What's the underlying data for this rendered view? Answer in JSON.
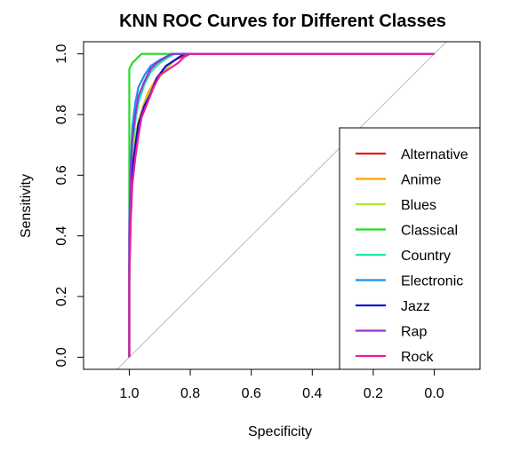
{
  "chart_data": {
    "type": "line",
    "title": "KNN ROC Curves for Different Classes",
    "xlabel": "Specificity",
    "ylabel": "Sensitivity",
    "xlim": [
      1.15,
      -0.15
    ],
    "ylim": [
      -0.04,
      1.04
    ],
    "x_reversed": true,
    "x_ticks": [
      {
        "value": 1.0,
        "label": "1.0"
      },
      {
        "value": 0.8,
        "label": "0.8"
      },
      {
        "value": 0.6,
        "label": "0.6"
      },
      {
        "value": 0.4,
        "label": "0.4"
      },
      {
        "value": 0.2,
        "label": "0.2"
      },
      {
        "value": 0.0,
        "label": "0.0"
      }
    ],
    "y_ticks": [
      {
        "value": 0.0,
        "label": "0.0"
      },
      {
        "value": 0.2,
        "label": "0.2"
      },
      {
        "value": 0.4,
        "label": "0.4"
      },
      {
        "value": 0.6,
        "label": "0.6"
      },
      {
        "value": 0.8,
        "label": "0.8"
      },
      {
        "value": 1.0,
        "label": "1.0"
      }
    ],
    "grid": false,
    "legend_position": "bottom-right",
    "diagonal_reference": {
      "color": "#bdbdbd",
      "points": [
        [
          1.04,
          -0.04
        ],
        [
          -0.04,
          1.04
        ]
      ]
    },
    "series": [
      {
        "name": "Alternative",
        "color": "#E8171A",
        "points": [
          [
            1,
            0
          ],
          [
            1,
            0.3
          ],
          [
            0.995,
            0.5
          ],
          [
            0.99,
            0.62
          ],
          [
            0.98,
            0.7
          ],
          [
            0.97,
            0.77
          ],
          [
            0.95,
            0.83
          ],
          [
            0.93,
            0.88
          ],
          [
            0.9,
            0.93
          ],
          [
            0.87,
            0.96
          ],
          [
            0.85,
            0.98
          ],
          [
            0.83,
            0.99
          ],
          [
            0.8,
            1
          ],
          [
            0,
            1
          ]
        ]
      },
      {
        "name": "Anime",
        "color": "#FFA500",
        "points": [
          [
            1,
            0
          ],
          [
            1,
            0.35
          ],
          [
            0.995,
            0.55
          ],
          [
            0.99,
            0.66
          ],
          [
            0.98,
            0.74
          ],
          [
            0.96,
            0.81
          ],
          [
            0.94,
            0.87
          ],
          [
            0.91,
            0.92
          ],
          [
            0.88,
            0.96
          ],
          [
            0.85,
            0.98
          ],
          [
            0.82,
            1
          ],
          [
            0,
            1
          ]
        ]
      },
      {
        "name": "Blues",
        "color": "#B2E830",
        "points": [
          [
            1,
            0
          ],
          [
            1,
            0.35
          ],
          [
            0.995,
            0.55
          ],
          [
            0.99,
            0.66
          ],
          [
            0.98,
            0.74
          ],
          [
            0.96,
            0.8
          ],
          [
            0.94,
            0.86
          ],
          [
            0.91,
            0.91
          ],
          [
            0.88,
            0.95
          ],
          [
            0.85,
            0.98
          ],
          [
            0.82,
            1
          ],
          [
            0,
            1
          ]
        ]
      },
      {
        "name": "Classical",
        "color": "#22DD22",
        "points": [
          [
            1,
            0
          ],
          [
            1,
            0.8
          ],
          [
            1,
            0.95
          ],
          [
            0.99,
            0.97
          ],
          [
            0.98,
            0.98
          ],
          [
            0.96,
            1
          ],
          [
            0,
            1
          ]
        ]
      },
      {
        "name": "Country",
        "color": "#1EE8B0",
        "points": [
          [
            1,
            0
          ],
          [
            1,
            0.4
          ],
          [
            0.995,
            0.6
          ],
          [
            0.99,
            0.7
          ],
          [
            0.98,
            0.78
          ],
          [
            0.97,
            0.84
          ],
          [
            0.95,
            0.9
          ],
          [
            0.93,
            0.94
          ],
          [
            0.9,
            0.97
          ],
          [
            0.87,
            0.99
          ],
          [
            0.85,
            1
          ],
          [
            0,
            1
          ]
        ]
      },
      {
        "name": "Electronic",
        "color": "#1E90E8",
        "points": [
          [
            1,
            0
          ],
          [
            1,
            0.45
          ],
          [
            0.995,
            0.65
          ],
          [
            0.99,
            0.76
          ],
          [
            0.98,
            0.84
          ],
          [
            0.97,
            0.89
          ],
          [
            0.95,
            0.93
          ],
          [
            0.93,
            0.96
          ],
          [
            0.9,
            0.98
          ],
          [
            0.88,
            0.99
          ],
          [
            0.86,
            1
          ],
          [
            0,
            1
          ]
        ]
      },
      {
        "name": "Jazz",
        "color": "#1010C8",
        "points": [
          [
            1,
            0
          ],
          [
            1,
            0.3
          ],
          [
            0.995,
            0.5
          ],
          [
            0.99,
            0.62
          ],
          [
            0.98,
            0.7
          ],
          [
            0.97,
            0.77
          ],
          [
            0.95,
            0.83
          ],
          [
            0.93,
            0.87
          ],
          [
            0.91,
            0.92
          ],
          [
            0.88,
            0.96
          ],
          [
            0.85,
            0.98
          ],
          [
            0.82,
            1
          ],
          [
            0,
            1
          ]
        ]
      },
      {
        "name": "Rap",
        "color": "#9932CC",
        "points": [
          [
            1,
            0
          ],
          [
            1,
            0.4
          ],
          [
            0.995,
            0.6
          ],
          [
            0.99,
            0.72
          ],
          [
            0.98,
            0.8
          ],
          [
            0.97,
            0.86
          ],
          [
            0.95,
            0.91
          ],
          [
            0.93,
            0.95
          ],
          [
            0.91,
            0.97
          ],
          [
            0.88,
            0.99
          ],
          [
            0.86,
            1
          ],
          [
            0,
            1
          ]
        ]
      },
      {
        "name": "Rock",
        "color": "#EE1D9D",
        "points": [
          [
            1,
            0
          ],
          [
            1,
            0.25
          ],
          [
            0.995,
            0.45
          ],
          [
            0.99,
            0.57
          ],
          [
            0.98,
            0.66
          ],
          [
            0.97,
            0.73
          ],
          [
            0.96,
            0.79
          ],
          [
            0.94,
            0.84
          ],
          [
            0.92,
            0.89
          ],
          [
            0.9,
            0.93
          ],
          [
            0.87,
            0.95
          ],
          [
            0.84,
            0.97
          ],
          [
            0.82,
            0.99
          ],
          [
            0.8,
            1
          ],
          [
            0,
            1
          ]
        ]
      }
    ]
  }
}
